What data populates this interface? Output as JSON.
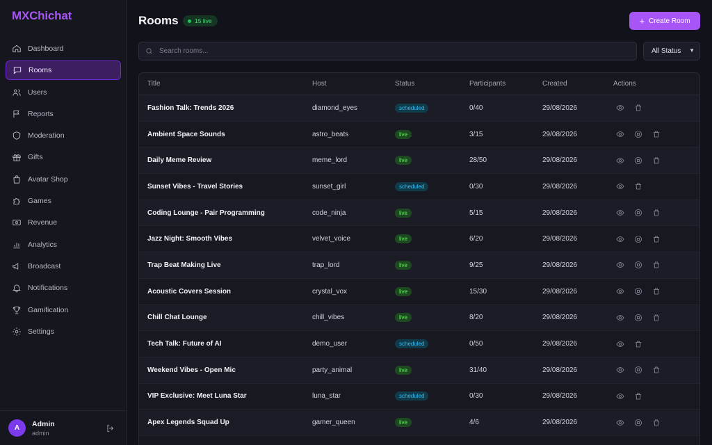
{
  "brand": "MXChichat",
  "sidebar": {
    "items": [
      {
        "label": "Dashboard",
        "icon": "home-icon"
      },
      {
        "label": "Rooms",
        "icon": "chat-icon",
        "active": true
      },
      {
        "label": "Users",
        "icon": "users-icon"
      },
      {
        "label": "Reports",
        "icon": "flag-icon"
      },
      {
        "label": "Moderation",
        "icon": "shield-icon"
      },
      {
        "label": "Gifts",
        "icon": "gift-icon"
      },
      {
        "label": "Avatar Shop",
        "icon": "shopping-bag-icon"
      },
      {
        "label": "Games",
        "icon": "puzzle-icon"
      },
      {
        "label": "Revenue",
        "icon": "banknote-icon"
      },
      {
        "label": "Analytics",
        "icon": "bar-chart-icon"
      },
      {
        "label": "Broadcast",
        "icon": "megaphone-icon"
      },
      {
        "label": "Notifications",
        "icon": "bell-icon"
      },
      {
        "label": "Gamification",
        "icon": "trophy-icon"
      },
      {
        "label": "Settings",
        "icon": "gear-icon"
      }
    ],
    "user": {
      "initial": "A",
      "name": "Admin",
      "role": "admin"
    }
  },
  "header": {
    "title": "Rooms",
    "live_badge": "15 live",
    "create_label": "Create Room"
  },
  "search": {
    "placeholder": "Search rooms..."
  },
  "filter": {
    "selected": "All Status"
  },
  "table": {
    "columns": [
      "Title",
      "Host",
      "Status",
      "Participants",
      "Created",
      "Actions"
    ],
    "rows": [
      {
        "title": "Fashion Talk: Trends 2026",
        "host": "diamond_eyes",
        "status": "scheduled",
        "participants": "0/40",
        "created": "29/08/2026"
      },
      {
        "title": "Ambient Space Sounds",
        "host": "astro_beats",
        "status": "live",
        "participants": "3/15",
        "created": "29/08/2026"
      },
      {
        "title": "Daily Meme Review",
        "host": "meme_lord",
        "status": "live",
        "participants": "28/50",
        "created": "29/08/2026"
      },
      {
        "title": "Sunset Vibes - Travel Stories",
        "host": "sunset_girl",
        "status": "scheduled",
        "participants": "0/30",
        "created": "29/08/2026"
      },
      {
        "title": "Coding Lounge - Pair Programming",
        "host": "code_ninja",
        "status": "live",
        "participants": "5/15",
        "created": "29/08/2026"
      },
      {
        "title": "Jazz Night: Smooth Vibes",
        "host": "velvet_voice",
        "status": "live",
        "participants": "6/20",
        "created": "29/08/2026"
      },
      {
        "title": "Trap Beat Making Live",
        "host": "trap_lord",
        "status": "live",
        "participants": "9/25",
        "created": "29/08/2026"
      },
      {
        "title": "Acoustic Covers Session",
        "host": "crystal_vox",
        "status": "live",
        "participants": "15/30",
        "created": "29/08/2026"
      },
      {
        "title": "Chill Chat Lounge",
        "host": "chill_vibes",
        "status": "live",
        "participants": "8/20",
        "created": "29/08/2026"
      },
      {
        "title": "Tech Talk: Future of AI",
        "host": "demo_user",
        "status": "scheduled",
        "participants": "0/50",
        "created": "29/08/2026"
      },
      {
        "title": "Weekend Vibes - Open Mic",
        "host": "party_animal",
        "status": "live",
        "participants": "31/40",
        "created": "29/08/2026"
      },
      {
        "title": "VIP Exclusive: Meet Luna Star",
        "host": "luna_star",
        "status": "scheduled",
        "participants": "0/30",
        "created": "29/08/2026"
      },
      {
        "title": "Apex Legends Squad Up",
        "host": "gamer_queen",
        "status": "live",
        "participants": "4/6",
        "created": "29/08/2026"
      }
    ]
  },
  "colors": {
    "accent": "#a855f7",
    "live_green": "#6ee76a",
    "scheduled_blue": "#38bdf8"
  }
}
